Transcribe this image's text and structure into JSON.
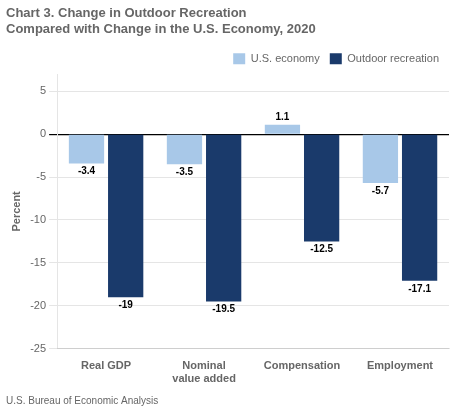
{
  "chart_data": {
    "type": "bar",
    "title": "Chart 3. Change in Outdoor Recreation\nCompared with Change in the U.S. Economy, 2020",
    "ylabel": "Percent",
    "footnote": "U.S. Bureau of Economic Analysis",
    "categories": [
      "Real GDP",
      "Nominal\nvalue added",
      "Compensation",
      "Employment"
    ],
    "series": [
      {
        "name": "U.S. economy",
        "color": "#a8c8e8",
        "values": [
          -3.4,
          -3.5,
          1.1,
          -5.7
        ]
      },
      {
        "name": "Outdoor recreation",
        "color": "#1a3a6b",
        "values": [
          -19.0,
          -19.5,
          -12.5,
          -17.1
        ]
      }
    ],
    "ylim": [
      -25,
      7
    ],
    "yticks": [
      -25,
      -20,
      -15,
      -10,
      -5,
      0,
      5
    ],
    "grid": true,
    "legend": "upper right",
    "data_labels": true
  }
}
